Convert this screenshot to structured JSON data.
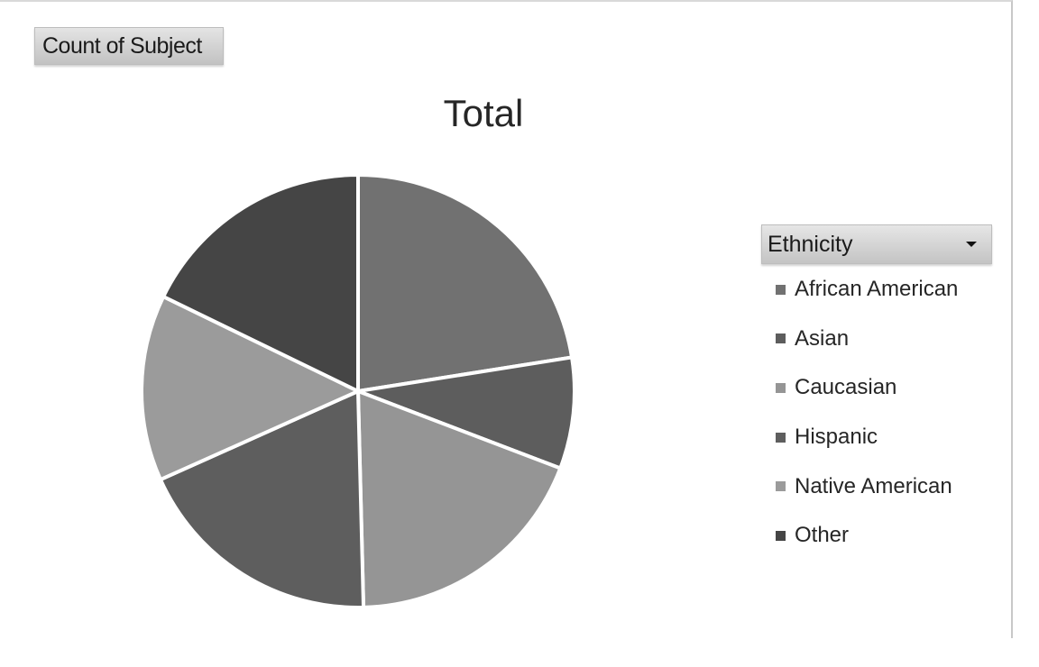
{
  "field_button": {
    "label": "Count of Subject"
  },
  "legend": {
    "field_label": "Ethnicity",
    "dropdown_icon": "dropdown-arrow-icon"
  },
  "chart_data": {
    "type": "pie",
    "title": "Total",
    "categories": [
      "African American",
      "Asian",
      "Caucasian",
      "Hispanic",
      "Native American",
      "Other"
    ],
    "values": [
      22.5,
      8.3,
      18.8,
      18.7,
      13.9,
      17.8
    ],
    "colors": [
      "#717171",
      "#5d5d5d",
      "#959595",
      "#5e5e5e",
      "#9b9b9b",
      "#454545"
    ],
    "slice_order": [
      0,
      1,
      2,
      3,
      4,
      5
    ],
    "legend_position": "right"
  }
}
